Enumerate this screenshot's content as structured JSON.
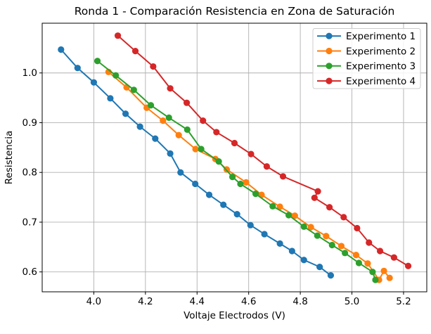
{
  "chart_data": {
    "type": "line",
    "title": "Ronda 1 - Comparación Resistencia en Zona de Saturación",
    "xlabel": "Voltaje Electrodos (V)",
    "ylabel": "Resistencia",
    "xlim": [
      3.8,
      5.29
    ],
    "ylim": [
      0.56,
      1.1
    ],
    "grid": true,
    "legend_position": "upper right",
    "xticks": {
      "values": [
        4.0,
        4.2,
        4.4,
        4.6,
        4.8,
        5.0,
        5.2
      ],
      "labels": [
        "4.0",
        "4.2",
        "4.4",
        "4.6",
        "4.8",
        "5.0",
        "5.2"
      ]
    },
    "yticks": {
      "values": [
        0.6,
        0.7,
        0.8,
        0.9,
        1.0
      ],
      "labels": [
        "0.6",
        "0.7",
        "0.8",
        "0.9",
        "1.0"
      ]
    },
    "series": [
      {
        "name": "Experimento 1",
        "color": "#1f77b4",
        "x": [
          3.873,
          3.937,
          4.0,
          4.064,
          4.123,
          4.179,
          4.238,
          4.296,
          4.336,
          4.393,
          4.447,
          4.502,
          4.555,
          4.607,
          4.661,
          4.721,
          4.768,
          4.814,
          4.875,
          4.918
        ],
        "y": [
          1.047,
          1.01,
          0.981,
          0.949,
          0.918,
          0.892,
          0.868,
          0.838,
          0.8,
          0.777,
          0.755,
          0.735,
          0.716,
          0.694,
          0.676,
          0.657,
          0.642,
          0.624,
          0.61,
          0.593
        ]
      },
      {
        "name": "Experimento 2",
        "color": "#ff7f0e",
        "x": [
          4.057,
          4.127,
          4.205,
          4.268,
          4.329,
          4.394,
          4.471,
          4.515,
          4.59,
          4.65,
          4.721,
          4.779,
          4.841,
          4.9,
          4.959,
          5.016,
          5.061,
          5.105,
          5.124,
          5.146
        ],
        "y": [
          1.002,
          0.971,
          0.93,
          0.904,
          0.875,
          0.847,
          0.827,
          0.806,
          0.78,
          0.755,
          0.731,
          0.713,
          0.69,
          0.672,
          0.652,
          0.634,
          0.617,
          0.584,
          0.602,
          0.588
        ]
      },
      {
        "name": "Experimento 3",
        "color": "#2ca02c",
        "x": [
          4.014,
          4.085,
          4.155,
          4.221,
          4.291,
          4.362,
          4.416,
          4.484,
          4.537,
          4.568,
          4.627,
          4.693,
          4.755,
          4.814,
          4.866,
          4.923,
          4.973,
          5.027,
          5.08,
          5.091
        ],
        "y": [
          1.024,
          0.995,
          0.966,
          0.935,
          0.91,
          0.886,
          0.847,
          0.822,
          0.791,
          0.777,
          0.757,
          0.732,
          0.714,
          0.691,
          0.673,
          0.654,
          0.638,
          0.618,
          0.6,
          0.584
        ]
      },
      {
        "name": "Experimento 4",
        "color": "#d62728",
        "x": [
          4.093,
          4.161,
          4.23,
          4.296,
          4.36,
          4.423,
          4.475,
          4.545,
          4.609,
          4.67,
          4.733,
          4.868,
          4.855,
          4.913,
          4.968,
          5.02,
          5.066,
          5.109,
          5.163,
          5.218
        ],
        "y": [
          1.075,
          1.044,
          1.013,
          0.969,
          0.94,
          0.904,
          0.881,
          0.859,
          0.837,
          0.812,
          0.792,
          0.762,
          0.749,
          0.73,
          0.71,
          0.688,
          0.659,
          0.642,
          0.629,
          0.612
        ]
      }
    ],
    "colors": {
      "background": "#ffffff",
      "grid": "#b0b0b0",
      "spine": "#000000",
      "legend_border": "#cccccc"
    }
  }
}
